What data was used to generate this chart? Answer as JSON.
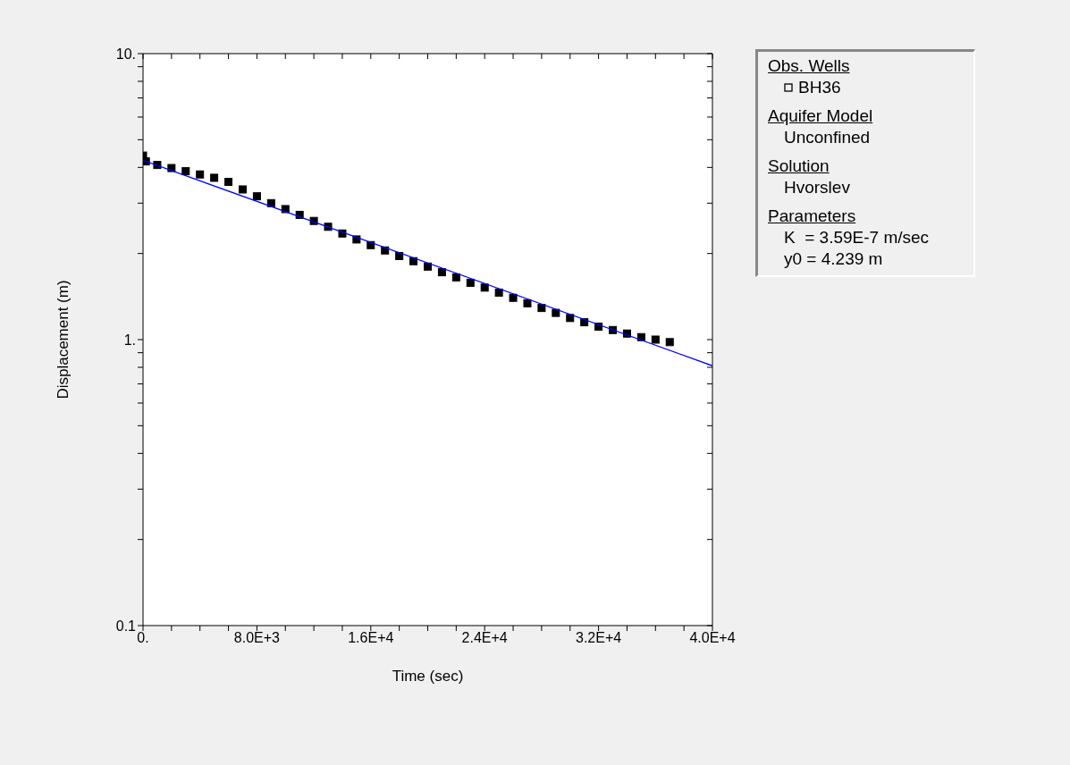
{
  "chart_data": {
    "type": "scatter",
    "xlabel": "Time (sec)",
    "ylabel": "Displacement (m)",
    "log": "y",
    "legend": "right",
    "legend_title": "Obs. Wells",
    "annotations": [
      "Aquifer Model",
      "Unconfined",
      "Solution",
      "Hvorslev",
      "Parameters",
      "K  = 3.59E-7 m/sec",
      "y0 = 4.239 m"
    ],
    "xlim": [
      0,
      40000
    ],
    "ylim": [
      0.1,
      10
    ],
    "xticks": [
      {
        "value": 0,
        "label": "0."
      },
      {
        "value": 2000,
        "label": null
      },
      {
        "value": 4000,
        "label": null
      },
      {
        "value": 6000,
        "label": null
      },
      {
        "value": 8000,
        "label": "8.0E+3"
      },
      {
        "value": 10000,
        "label": null
      },
      {
        "value": 12000,
        "label": null
      },
      {
        "value": 14000,
        "label": null
      },
      {
        "value": 16000,
        "label": "1.6E+4"
      },
      {
        "value": 18000,
        "label": null
      },
      {
        "value": 20000,
        "label": null
      },
      {
        "value": 22000,
        "label": null
      },
      {
        "value": 24000,
        "label": "2.4E+4"
      },
      {
        "value": 26000,
        "label": null
      },
      {
        "value": 28000,
        "label": null
      },
      {
        "value": 30000,
        "label": null
      },
      {
        "value": 32000,
        "label": "3.2E+4"
      },
      {
        "value": 34000,
        "label": null
      },
      {
        "value": 36000,
        "label": null
      },
      {
        "value": 38000,
        "label": null
      },
      {
        "value": 40000,
        "label": "4.0E+4"
      }
    ],
    "yticks": [
      {
        "value": 0.1,
        "label": "0.1"
      },
      {
        "value": 0.2,
        "label": null
      },
      {
        "value": 0.3,
        "label": null
      },
      {
        "value": 0.4,
        "label": null
      },
      {
        "value": 0.5,
        "label": null
      },
      {
        "value": 0.6,
        "label": null
      },
      {
        "value": 0.7,
        "label": null
      },
      {
        "value": 0.8,
        "label": null
      },
      {
        "value": 0.9,
        "label": null
      },
      {
        "value": 1,
        "label": "1."
      },
      {
        "value": 2,
        "label": null
      },
      {
        "value": 3,
        "label": null
      },
      {
        "value": 4,
        "label": null
      },
      {
        "value": 5,
        "label": null
      },
      {
        "value": 6,
        "label": null
      },
      {
        "value": 7,
        "label": null
      },
      {
        "value": 8,
        "label": null
      },
      {
        "value": 9,
        "label": null
      },
      {
        "value": 10,
        "label": "10."
      }
    ],
    "series": [
      {
        "name": "BH36",
        "marker": "square",
        "color": "#000000",
        "x": [
          0,
          200,
          1000,
          2000,
          3000,
          4000,
          5000,
          6000,
          7000,
          8000,
          9000,
          10000,
          11000,
          12000,
          13000,
          14000,
          15000,
          16000,
          17000,
          18000,
          19000,
          20000,
          21000,
          22000,
          23000,
          24000,
          25000,
          26000,
          27000,
          28000,
          29000,
          30000,
          31000,
          32000,
          33000,
          34000,
          35000,
          36000,
          37000
        ],
        "values": [
          4.4,
          4.2,
          4.08,
          3.98,
          3.88,
          3.78,
          3.68,
          3.56,
          3.35,
          3.17,
          3.0,
          2.86,
          2.73,
          2.6,
          2.48,
          2.35,
          2.24,
          2.14,
          2.05,
          1.96,
          1.88,
          1.8,
          1.72,
          1.65,
          1.58,
          1.52,
          1.46,
          1.4,
          1.34,
          1.29,
          1.24,
          1.19,
          1.15,
          1.11,
          1.08,
          1.05,
          1.02,
          1.0,
          0.98
        ]
      },
      {
        "type": "line",
        "color": "#0000ff",
        "x": [
          0,
          40000
        ],
        "values": [
          4.239,
          0.81
        ]
      }
    ]
  }
}
